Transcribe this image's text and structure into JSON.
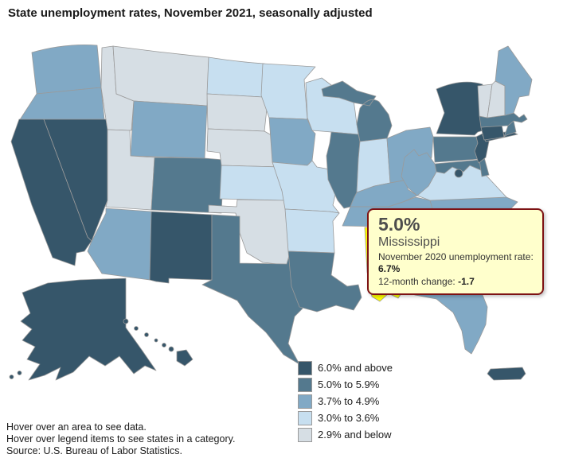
{
  "title": "State unemployment rates, November 2021, seasonally adjusted",
  "colors": {
    "categories": {
      "6.0% and above": "#36566A",
      "5.0% to 5.9%": "#54798E",
      "3.7% to 4.9%": "#81A9C5",
      "3.0% to 3.6%": "#C7DFF0",
      "2.9% and below": "#D6DEE4"
    },
    "highlight": "#FFFF00",
    "state_border": "#9A9A9A",
    "tooltip_background": "#FFFFCC",
    "tooltip_border": "#7D1214"
  },
  "legend": {
    "items": [
      {
        "label": "6.0% and above",
        "color": "#36566A"
      },
      {
        "label": "5.0% to 5.9%",
        "color": "#54798E"
      },
      {
        "label": "3.7% to 4.9%",
        "color": "#81A9C5"
      },
      {
        "label": "3.0% to 3.6%",
        "color": "#C7DFF0"
      },
      {
        "label": "2.9% and below",
        "color": "#D6DEE4"
      }
    ]
  },
  "tooltip": {
    "value": "5.0%",
    "state": "Mississippi",
    "prev_label": "November 2020 unemployment rate:",
    "prev_value": "6.7%",
    "change_label": "12-month change:",
    "change_value": "-1.7"
  },
  "notes": [
    "Hover over an area to see data.",
    "Hover over legend items to see states in a category."
  ],
  "source": "Source: U.S. Bureau of Labor Statistics.",
  "chart_data": {
    "type": "choropleth",
    "title": "State unemployment rates, November 2021, seasonally adjusted",
    "unit": "unemployment rate (%)",
    "categories": [
      "6.0% and above",
      "5.0% to 5.9%",
      "3.7% to 4.9%",
      "3.0% to 3.6%",
      "2.9% and below"
    ],
    "highlighted": {
      "name": "Mississippi",
      "abbr": "MS",
      "value": "5.0%",
      "november_2020_rate": "6.7%",
      "twelve_month_change": "-1.7"
    },
    "states": [
      {
        "abbr": "WA",
        "name": "Washington",
        "category": "3.7% to 4.9%"
      },
      {
        "abbr": "OR",
        "name": "Oregon",
        "category": "3.7% to 4.9%"
      },
      {
        "abbr": "CA",
        "name": "California",
        "category": "6.0% and above"
      },
      {
        "abbr": "NV",
        "name": "Nevada",
        "category": "6.0% and above"
      },
      {
        "abbr": "ID",
        "name": "Idaho",
        "category": "2.9% and below"
      },
      {
        "abbr": "MT",
        "name": "Montana",
        "category": "2.9% and below"
      },
      {
        "abbr": "WY",
        "name": "Wyoming",
        "category": "3.7% to 4.9%"
      },
      {
        "abbr": "UT",
        "name": "Utah",
        "category": "2.9% and below"
      },
      {
        "abbr": "CO",
        "name": "Colorado",
        "category": "5.0% to 5.9%"
      },
      {
        "abbr": "AZ",
        "name": "Arizona",
        "category": "3.7% to 4.9%"
      },
      {
        "abbr": "NM",
        "name": "New Mexico",
        "category": "6.0% and above"
      },
      {
        "abbr": "ND",
        "name": "North Dakota",
        "category": "3.0% to 3.6%"
      },
      {
        "abbr": "SD",
        "name": "South Dakota",
        "category": "2.9% and below"
      },
      {
        "abbr": "NE",
        "name": "Nebraska",
        "category": "2.9% and below"
      },
      {
        "abbr": "KS",
        "name": "Kansas",
        "category": "3.0% to 3.6%"
      },
      {
        "abbr": "OK",
        "name": "Oklahoma",
        "category": "2.9% and below"
      },
      {
        "abbr": "TX",
        "name": "Texas",
        "category": "5.0% to 5.9%"
      },
      {
        "abbr": "MN",
        "name": "Minnesota",
        "category": "3.0% to 3.6%"
      },
      {
        "abbr": "IA",
        "name": "Iowa",
        "category": "3.7% to 4.9%"
      },
      {
        "abbr": "MO",
        "name": "Missouri",
        "category": "3.0% to 3.6%"
      },
      {
        "abbr": "AR",
        "name": "Arkansas",
        "category": "3.0% to 3.6%"
      },
      {
        "abbr": "LA",
        "name": "Louisiana",
        "category": "5.0% to 5.9%"
      },
      {
        "abbr": "WI",
        "name": "Wisconsin",
        "category": "3.0% to 3.6%"
      },
      {
        "abbr": "IL",
        "name": "Illinois",
        "category": "5.0% to 5.9%"
      },
      {
        "abbr": "MI",
        "name": "Michigan",
        "category": "5.0% to 5.9%"
      },
      {
        "abbr": "IN",
        "name": "Indiana",
        "category": "3.0% to 3.6%"
      },
      {
        "abbr": "OH",
        "name": "Ohio",
        "category": "3.7% to 4.9%"
      },
      {
        "abbr": "KY",
        "name": "Kentucky",
        "category": "3.7% to 4.9%"
      },
      {
        "abbr": "TN",
        "name": "Tennessee",
        "category": "3.7% to 4.9%"
      },
      {
        "abbr": "MS",
        "name": "Mississippi",
        "category": "5.0% to 5.9%",
        "highlighted": true
      },
      {
        "abbr": "AL",
        "name": "Alabama",
        "category": "3.0% to 3.6%"
      },
      {
        "abbr": "GA",
        "name": "Georgia",
        "category": "2.9% and below"
      },
      {
        "abbr": "FL",
        "name": "Florida",
        "category": "3.7% to 4.9%"
      },
      {
        "abbr": "SC",
        "name": "South Carolina",
        "category": "3.7% to 4.9%"
      },
      {
        "abbr": "NC",
        "name": "North Carolina",
        "category": "3.7% to 4.9%"
      },
      {
        "abbr": "VA",
        "name": "Virginia",
        "category": "3.0% to 3.6%"
      },
      {
        "abbr": "WV",
        "name": "West Virginia",
        "category": "3.7% to 4.9%"
      },
      {
        "abbr": "PA",
        "name": "Pennsylvania",
        "category": "5.0% to 5.9%"
      },
      {
        "abbr": "MD",
        "name": "Maryland",
        "category": "5.0% to 5.9%"
      },
      {
        "abbr": "DE",
        "name": "Delaware",
        "category": "5.0% to 5.9%"
      },
      {
        "abbr": "DC",
        "name": "District of Columbia",
        "category": "6.0% and above"
      },
      {
        "abbr": "NJ",
        "name": "New Jersey",
        "category": "6.0% and above"
      },
      {
        "abbr": "NY",
        "name": "New York",
        "category": "6.0% and above"
      },
      {
        "abbr": "CT",
        "name": "Connecticut",
        "category": "6.0% and above"
      },
      {
        "abbr": "RI",
        "name": "Rhode Island",
        "category": "5.0% to 5.9%"
      },
      {
        "abbr": "MA",
        "name": "Massachusetts",
        "category": "5.0% to 5.9%"
      },
      {
        "abbr": "VT",
        "name": "Vermont",
        "category": "2.9% and below"
      },
      {
        "abbr": "NH",
        "name": "New Hampshire",
        "category": "2.9% and below"
      },
      {
        "abbr": "ME",
        "name": "Maine",
        "category": "3.7% to 4.9%"
      },
      {
        "abbr": "AK",
        "name": "Alaska",
        "category": "6.0% and above"
      },
      {
        "abbr": "HI",
        "name": "Hawaii",
        "category": "6.0% and above"
      },
      {
        "abbr": "PR",
        "name": "Puerto Rico",
        "category": "6.0% and above"
      }
    ]
  }
}
